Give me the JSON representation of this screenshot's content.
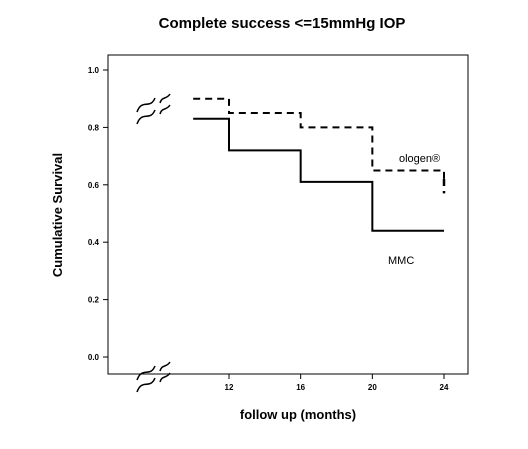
{
  "chart_data": {
    "type": "line",
    "title": "Complete success <=15mmHg IOP",
    "xlabel": "follow up (months)",
    "ylabel": "Cumulative Survival",
    "xlim": [
      10,
      24
    ],
    "ylim": [
      0.0,
      1.0
    ],
    "x_ticks": [
      "12",
      "16",
      "20",
      "24"
    ],
    "y_ticks": [
      "0.0",
      "0.2",
      "0.4",
      "0.6",
      "0.8",
      "1.0"
    ],
    "grid": false,
    "axis_breaks": true,
    "series": [
      {
        "name": "ologen®",
        "style": "dashed",
        "color": "#000000",
        "x": [
          10,
          12,
          16,
          20,
          24
        ],
        "y": [
          0.9,
          0.85,
          0.8,
          0.65,
          0.62
        ],
        "censor_x": 24,
        "censor_y": 0.57
      },
      {
        "name": "MMC",
        "style": "solid",
        "color": "#000000",
        "x": [
          10,
          12,
          16,
          20,
          24
        ],
        "y": [
          0.83,
          0.72,
          0.61,
          0.44,
          0.44
        ]
      }
    ]
  }
}
